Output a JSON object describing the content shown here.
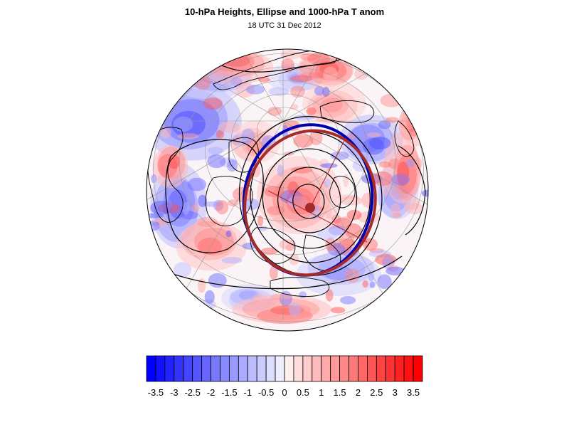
{
  "header": {
    "title": "10-hPa Heights, Ellipse and 1000-hPa T anom",
    "subtitle": "18 UTC 31 Dec 2012"
  },
  "colors": {
    "negative": "#0000ff",
    "positive": "#ff0000",
    "ellipse_red": "#a52a2a",
    "ellipse_blue": "#0000b0",
    "contour": "#000000"
  },
  "colorbar": {
    "levels": [
      -3.75,
      -3.5,
      -3.25,
      -3,
      -2.75,
      -2.5,
      -2.25,
      -2,
      -1.75,
      -1.5,
      -1.25,
      -1,
      -0.75,
      -0.5,
      -0.25,
      0,
      0.25,
      0.5,
      0.75,
      1,
      1.25,
      1.5,
      1.75,
      2,
      2.25,
      2.5,
      2.75,
      3,
      3.25,
      3.5,
      3.75
    ],
    "tick_labels": [
      "-3.5",
      "-3",
      "-2.5",
      "-2",
      "-1.5",
      "-1",
      "-0.5",
      "0",
      "0.5",
      "1",
      "1.5",
      "2",
      "2.5",
      "3",
      "3.5"
    ]
  },
  "map": {
    "projection": "polar-orthographic",
    "features": [
      "temperature-anomaly-shading",
      "coastlines",
      "lat-lon-grid",
      "height-contours",
      "red-ellipse",
      "blue-ellipse",
      "vortex-center"
    ]
  }
}
